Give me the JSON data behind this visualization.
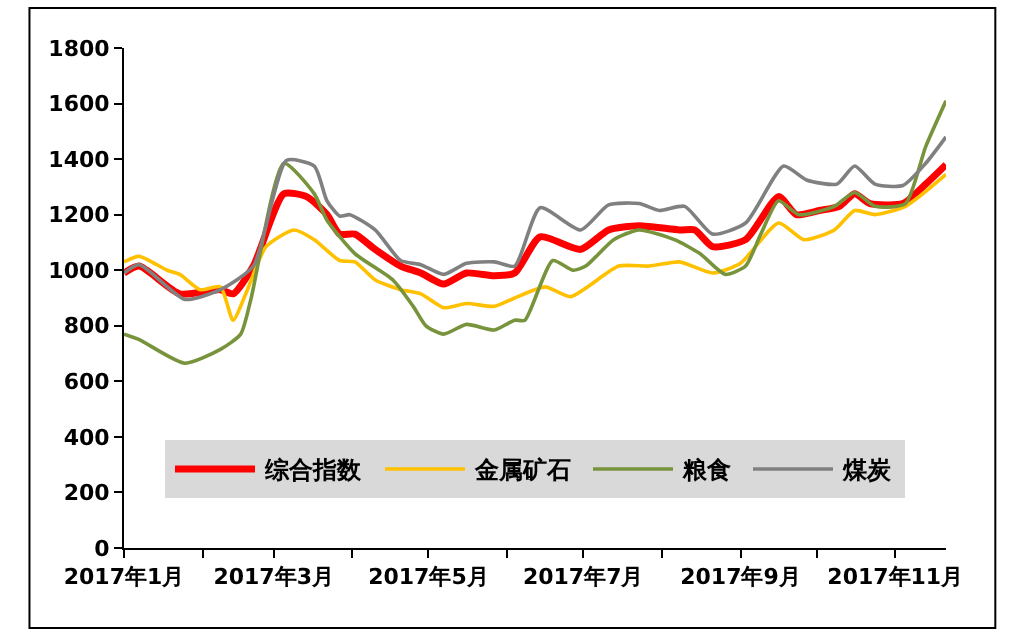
{
  "chart_data": {
    "type": "line",
    "xlim": [
      "2017-01-01",
      "2017-11-21"
    ],
    "ylim": [
      0,
      1800
    ],
    "yticks": [
      0,
      200,
      400,
      600,
      800,
      1000,
      1200,
      1400,
      1600,
      1800
    ],
    "xticks": [
      {
        "value": "2017-01-01",
        "label": "2017年1月"
      },
      {
        "value": "2017-02-01",
        "label": null
      },
      {
        "value": "2017-03-01",
        "label": "2017年3月"
      },
      {
        "value": "2017-04-01",
        "label": null
      },
      {
        "value": "2017-05-01",
        "label": "2017年5月"
      },
      {
        "value": "2017-06-01",
        "label": null
      },
      {
        "value": "2017-07-01",
        "label": "2017年7月"
      },
      {
        "value": "2017-08-01",
        "label": null
      },
      {
        "value": "2017-09-01",
        "label": "2017年9月"
      },
      {
        "value": "2017-10-01",
        "label": null
      },
      {
        "value": "2017-11-01",
        "label": "2017年11月"
      }
    ],
    "legend": "bottom",
    "marker": "none",
    "line_style": "solid",
    "series": [
      {
        "name": "综合指数",
        "color": "#ff0000",
        "x": [
          "2017-01-01",
          "2017-01-07",
          "2017-01-23",
          "2017-02-08",
          "2017-02-13",
          "2017-02-21",
          "2017-03-05",
          "2017-03-14",
          "2017-03-22",
          "2017-03-27",
          "2017-04-02",
          "2017-04-10",
          "2017-04-20",
          "2017-04-28",
          "2017-05-07",
          "2017-05-16",
          "2017-05-27",
          "2017-06-04",
          "2017-06-14",
          "2017-06-30",
          "2017-07-11",
          "2017-07-23",
          "2017-08-08",
          "2017-08-14",
          "2017-08-21",
          "2017-09-03",
          "2017-09-16",
          "2017-09-23",
          "2017-10-02",
          "2017-10-10",
          "2017-10-16",
          "2017-10-22",
          "2017-11-04",
          "2017-11-13",
          "2017-11-21"
        ],
        "values": [
          990,
          1015,
          915,
          930,
          915,
          1015,
          1275,
          1265,
          1200,
          1130,
          1130,
          1075,
          1015,
          990,
          950,
          990,
          980,
          990,
          1120,
          1075,
          1145,
          1160,
          1145,
          1145,
          1085,
          1110,
          1265,
          1200,
          1215,
          1230,
          1275,
          1240,
          1240,
          1310,
          1380
        ]
      },
      {
        "name": "金属矿石",
        "color": "#ffc000",
        "x": [
          "2017-01-01",
          "2017-01-07",
          "2017-01-18",
          "2017-01-23",
          "2017-01-31",
          "2017-02-08",
          "2017-02-13",
          "2017-02-18",
          "2017-02-26",
          "2017-03-09",
          "2017-03-17",
          "2017-03-27",
          "2017-04-02",
          "2017-04-10",
          "2017-04-20",
          "2017-04-28",
          "2017-05-07",
          "2017-05-16",
          "2017-05-27",
          "2017-06-04",
          "2017-06-16",
          "2017-06-26",
          "2017-07-15",
          "2017-07-27",
          "2017-08-08",
          "2017-08-21",
          "2017-09-01",
          "2017-09-16",
          "2017-09-26",
          "2017-10-08",
          "2017-10-16",
          "2017-10-24",
          "2017-11-05",
          "2017-11-21"
        ],
        "values": [
          1030,
          1050,
          1000,
          985,
          930,
          940,
          820,
          915,
          1085,
          1145,
          1110,
          1035,
          1030,
          965,
          930,
          915,
          865,
          880,
          870,
          900,
          940,
          905,
          1015,
          1015,
          1030,
          990,
          1025,
          1170,
          1110,
          1145,
          1215,
          1200,
          1230,
          1345
        ]
      },
      {
        "name": "粮食",
        "color": "#77933c",
        "x": [
          "2017-01-01",
          "2017-01-07",
          "2017-01-25",
          "2017-02-08",
          "2017-02-16",
          "2017-02-20",
          "2017-03-05",
          "2017-03-17",
          "2017-03-22",
          "2017-04-02",
          "2017-04-17",
          "2017-04-25",
          "2017-04-30",
          "2017-05-07",
          "2017-05-16",
          "2017-05-27",
          "2017-06-04",
          "2017-06-08",
          "2017-06-19",
          "2017-06-27",
          "2017-07-02",
          "2017-07-13",
          "2017-07-23",
          "2017-08-06",
          "2017-08-16",
          "2017-08-26",
          "2017-09-03",
          "2017-09-09",
          "2017-09-16",
          "2017-09-24",
          "2017-10-08",
          "2017-10-16",
          "2017-10-24",
          "2017-11-05",
          "2017-11-13",
          "2017-11-21"
        ],
        "values": [
          770,
          750,
          665,
          715,
          770,
          895,
          1385,
          1275,
          1180,
          1060,
          965,
          870,
          800,
          770,
          805,
          785,
          820,
          820,
          1035,
          1000,
          1015,
          1110,
          1145,
          1110,
          1060,
          985,
          1015,
          1130,
          1250,
          1200,
          1230,
          1280,
          1230,
          1240,
          1445,
          1610
        ]
      },
      {
        "name": "煤炭",
        "color": "#808080",
        "x": [
          "2017-01-01",
          "2017-01-07",
          "2017-01-25",
          "2017-02-08",
          "2017-02-21",
          "2017-03-06",
          "2017-03-17",
          "2017-03-22",
          "2017-03-27",
          "2017-03-31",
          "2017-04-10",
          "2017-04-20",
          "2017-04-28",
          "2017-05-07",
          "2017-05-16",
          "2017-05-27",
          "2017-06-04",
          "2017-06-14",
          "2017-06-30",
          "2017-07-11",
          "2017-07-23",
          "2017-07-31",
          "2017-08-10",
          "2017-08-21",
          "2017-09-03",
          "2017-09-18",
          "2017-09-27",
          "2017-10-09",
          "2017-10-16",
          "2017-10-24",
          "2017-11-04",
          "2017-11-13",
          "2017-11-21"
        ],
        "values": [
          990,
          1020,
          895,
          930,
          1015,
          1395,
          1375,
          1250,
          1195,
          1200,
          1145,
          1035,
          1020,
          985,
          1025,
          1030,
          1015,
          1225,
          1145,
          1235,
          1240,
          1215,
          1230,
          1130,
          1170,
          1375,
          1325,
          1310,
          1375,
          1310,
          1305,
          1385,
          1480
        ]
      }
    ]
  }
}
